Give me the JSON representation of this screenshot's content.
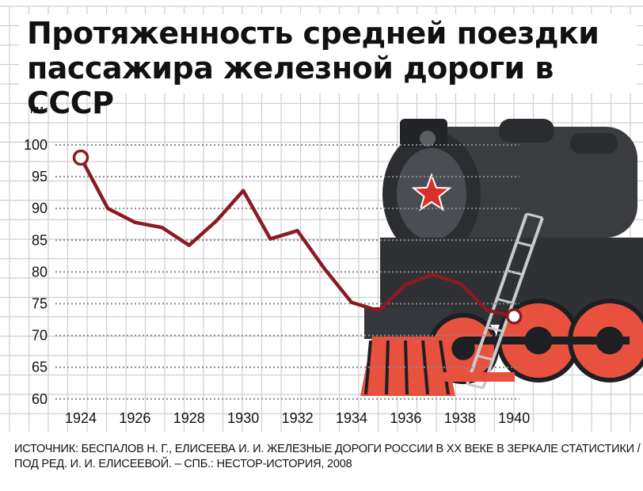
{
  "title_lines": [
    "Протяженность средней поездки",
    "пассажира железной дороги в СССР"
  ],
  "source_lines": [
    "ИСТОЧНИК: БЕСПАЛОВ Н. Г., ЕЛИСЕЕВА И. И. ЖЕЛЕЗНЫЕ ДОРОГИ РОССИИ В XX ВЕКЕ В ЗЕРКАЛЕ СТАТИСТИКИ /",
    "ПОД РЕД. И. И. ЕЛИСЕЕВОЙ. – СПБ.: НЕСТОР-ИСТОРИЯ, 2008"
  ],
  "colors": {
    "line": "#8b1a24",
    "grid": "#cfcfcf",
    "gridDotted": "#8a8a8a",
    "locomotive_body": "#3a3c40",
    "locomotive_red": "#e8513e",
    "star": "#d8302a"
  },
  "illustration": "steam-locomotive-icon",
  "chart_data": {
    "type": "line",
    "title": "Протяженность средней поездки пассажира железной дороги в СССР",
    "ylabel": "км",
    "xlabel": "",
    "x_ticks": [
      "1924",
      "1926",
      "1928",
      "1930",
      "1932",
      "1934",
      "1936",
      "1938",
      "1940"
    ],
    "y_ticks": [
      "60",
      "65",
      "70",
      "75",
      "80",
      "85",
      "90",
      "95",
      "100"
    ],
    "xlim": [
      1923,
      1941
    ],
    "ylim": [
      57,
      102
    ],
    "grid": true,
    "legend": "none",
    "series": [
      {
        "x": [
          1924,
          1925,
          1926,
          1927,
          1928,
          1929,
          1930,
          1931,
          1932,
          1933,
          1934,
          1935,
          1936,
          1937,
          1938,
          1939,
          1940
        ],
        "y": [
          98,
          90,
          87.8,
          87,
          84.2,
          88,
          92.8,
          85.2,
          86.5,
          80.5,
          75.2,
          73.9,
          78,
          79.6,
          78.2,
          74,
          73
        ]
      }
    ]
  }
}
